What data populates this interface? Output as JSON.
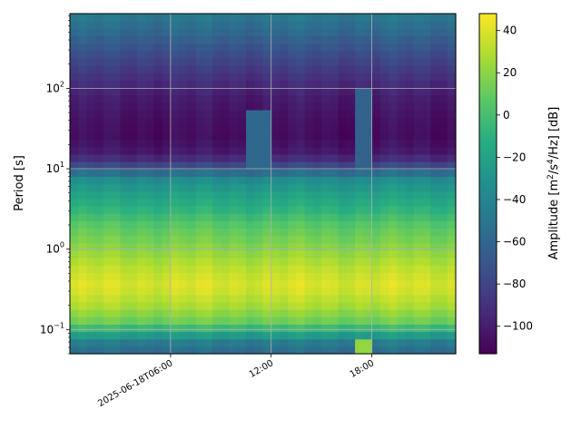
{
  "chart_data": {
    "type": "heatmap",
    "title": "",
    "xlabel": "",
    "ylabel": "Period [s]",
    "y_scale": "log",
    "ylim": [
      0.05,
      850
    ],
    "xlim": [
      "2025-06-18T00:00",
      "2025-06-18T23:00"
    ],
    "x_tick_labels": [
      "2025-06-18T06:00",
      "12:00",
      "18:00"
    ],
    "x_tick_values": [
      "2025-06-18T06:00",
      "2025-06-18T12:00",
      "2025-06-18T18:00"
    ],
    "y_tick_labels": [
      "10",
      "10",
      "10",
      "10"
    ],
    "y_tick_exponents": [
      "−1",
      "0",
      "1",
      "2"
    ],
    "y_tick_values": [
      0.1,
      1,
      10,
      100
    ],
    "grid": true,
    "colormap": "viridis",
    "colorbar": {
      "label": "Amplitude [m²/s⁴/Hz] [dB]",
      "label_parts": [
        "Amplitude [m",
        "2",
        "/s",
        "4",
        "/Hz",
        "] [dB]"
      ],
      "range": [
        -113,
        48
      ],
      "tick_values": [
        40,
        20,
        0,
        -20,
        -40,
        -60,
        -80,
        -100
      ],
      "tick_labels": [
        "40",
        "20",
        "0",
        "−20",
        "−40",
        "−60",
        "−80",
        "−100"
      ]
    },
    "period_profile_dB": [
      {
        "period": 800,
        "value": -48
      },
      {
        "period": 500,
        "value": -58
      },
      {
        "period": 300,
        "value": -72
      },
      {
        "period": 150,
        "value": -88
      },
      {
        "period": 80,
        "value": -100
      },
      {
        "period": 40,
        "value": -106
      },
      {
        "period": 25,
        "value": -108
      },
      {
        "period": 15,
        "value": -100
      },
      {
        "period": 10,
        "value": -70
      },
      {
        "period": 8,
        "value": -38
      },
      {
        "period": 5,
        "value": -22
      },
      {
        "period": 3,
        "value": -8
      },
      {
        "period": 2,
        "value": 6
      },
      {
        "period": 1,
        "value": 20
      },
      {
        "period": 0.6,
        "value": 32
      },
      {
        "period": 0.35,
        "value": 40
      },
      {
        "period": 0.2,
        "value": 28
      },
      {
        "period": 0.12,
        "value": 10
      },
      {
        "period": 0.09,
        "value": -20
      },
      {
        "period": 0.07,
        "value": -45
      },
      {
        "period": 0.055,
        "value": -55
      }
    ],
    "time_anomalies": [
      {
        "start": "2025-06-18T10:30",
        "end": "2025-06-18T12:00",
        "period_range": [
          10,
          50
        ],
        "value": -58
      },
      {
        "start": "2025-06-18T17:00",
        "end": "2025-06-18T18:00",
        "period_range": [
          10,
          100
        ],
        "value": -62
      },
      {
        "start": "2025-06-18T17:00",
        "end": "2025-06-18T18:00",
        "period_range": [
          0.05,
          0.08
        ],
        "value": 22
      }
    ]
  }
}
